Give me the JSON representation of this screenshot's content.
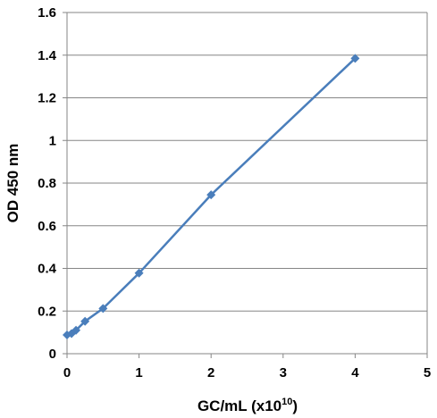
{
  "chart_data": {
    "type": "scatter",
    "title": "",
    "xlabel": "GC/mL (x10",
    "xlabel_superscript": "10",
    "xlabel_suffix": ")",
    "ylabel": "OD 450 nm",
    "xlim": [
      0,
      5
    ],
    "ylim": [
      0,
      1.6
    ],
    "x_ticks": [
      "0",
      "1",
      "2",
      "3",
      "4",
      "5"
    ],
    "y_ticks": [
      "0",
      "0.2",
      "0.4",
      "0.6",
      "0.8",
      "1",
      "1.2",
      "1.4",
      "1.6"
    ],
    "grid": "horizontal",
    "legend": "none",
    "series": [
      {
        "color": "#4a7ebb",
        "marker": "diamond",
        "x": [
          0,
          0.0625,
          0.125,
          0.25,
          0.5,
          1,
          2,
          4
        ],
        "y": [
          0.088,
          0.094,
          0.11,
          0.152,
          0.212,
          0.378,
          0.745,
          1.385
        ]
      }
    ]
  }
}
